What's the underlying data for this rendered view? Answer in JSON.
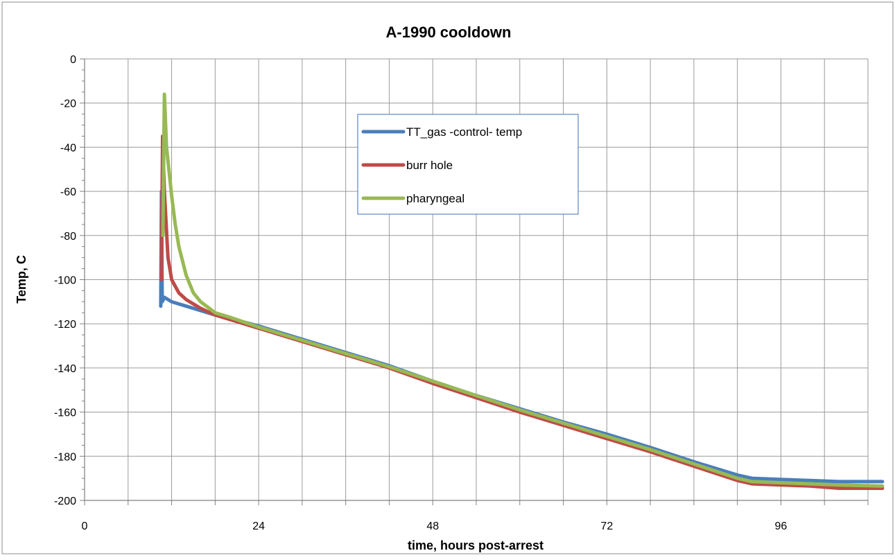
{
  "chart_data": {
    "type": "line",
    "title": "A-1990 cooldown",
    "xlabel": "time, hours post-arrest",
    "ylabel": "Temp, C",
    "xlim": [
      0,
      108
    ],
    "ylim": [
      -200,
      0
    ],
    "xticks": [
      0,
      24,
      48,
      72,
      96
    ],
    "yticks": [
      0,
      -20,
      -40,
      -60,
      -80,
      -100,
      -120,
      -140,
      -160,
      -180,
      -200
    ],
    "grid": true,
    "legend_position": "top-center",
    "series": [
      {
        "name": "TT_gas -control- temp",
        "color": "#4a7ebb",
        "points": [
          [
            10.5,
            -112
          ],
          [
            10.6,
            -60
          ],
          [
            10.7,
            -110
          ],
          [
            11,
            -108
          ],
          [
            12,
            -110
          ],
          [
            14,
            -112
          ],
          [
            16,
            -114
          ],
          [
            18,
            -116
          ],
          [
            20,
            -117.5
          ],
          [
            24,
            -121
          ],
          [
            30,
            -127
          ],
          [
            36,
            -133
          ],
          [
            42,
            -139
          ],
          [
            48,
            -146
          ],
          [
            54,
            -152.5
          ],
          [
            60,
            -158.5
          ],
          [
            66,
            -164.5
          ],
          [
            72,
            -170
          ],
          [
            78,
            -176
          ],
          [
            84,
            -182.5
          ],
          [
            90,
            -188.5
          ],
          [
            92,
            -190
          ],
          [
            96,
            -190.5
          ],
          [
            100,
            -191
          ],
          [
            104,
            -191.5
          ],
          [
            110,
            -191.5
          ]
        ]
      },
      {
        "name": "burr hole",
        "color": "#be4b48",
        "points": [
          [
            10.6,
            -100
          ],
          [
            10.75,
            -35
          ],
          [
            11,
            -60
          ],
          [
            11.5,
            -90
          ],
          [
            12,
            -100
          ],
          [
            13,
            -106
          ],
          [
            14,
            -109
          ],
          [
            16,
            -113
          ],
          [
            18,
            -116
          ],
          [
            20,
            -118
          ],
          [
            24,
            -122
          ],
          [
            30,
            -128
          ],
          [
            36,
            -134
          ],
          [
            42,
            -140
          ],
          [
            48,
            -147
          ],
          [
            54,
            -153.5
          ],
          [
            60,
            -160
          ],
          [
            66,
            -166
          ],
          [
            72,
            -172
          ],
          [
            78,
            -178
          ],
          [
            84,
            -184.5
          ],
          [
            90,
            -191
          ],
          [
            92,
            -192.5
          ],
          [
            96,
            -193
          ],
          [
            100,
            -193.5
          ],
          [
            104,
            -194.5
          ],
          [
            110,
            -194.5
          ]
        ]
      },
      {
        "name": "pharyngeal",
        "color": "#98b954",
        "points": [
          [
            10.8,
            -80
          ],
          [
            11,
            -16
          ],
          [
            11.3,
            -40
          ],
          [
            12,
            -62
          ],
          [
            12.5,
            -75
          ],
          [
            13,
            -85
          ],
          [
            14,
            -98
          ],
          [
            15,
            -106
          ],
          [
            16,
            -110
          ],
          [
            18,
            -115
          ],
          [
            20,
            -117
          ],
          [
            24,
            -121.5
          ],
          [
            30,
            -127.5
          ],
          [
            36,
            -133.5
          ],
          [
            42,
            -139.5
          ],
          [
            48,
            -146
          ],
          [
            54,
            -152.5
          ],
          [
            60,
            -159
          ],
          [
            66,
            -165
          ],
          [
            72,
            -171
          ],
          [
            78,
            -177
          ],
          [
            84,
            -183.5
          ],
          [
            90,
            -190
          ],
          [
            92,
            -191.5
          ],
          [
            96,
            -192
          ],
          [
            100,
            -192.5
          ],
          [
            104,
            -193
          ],
          [
            110,
            -193.5
          ]
        ]
      }
    ]
  }
}
